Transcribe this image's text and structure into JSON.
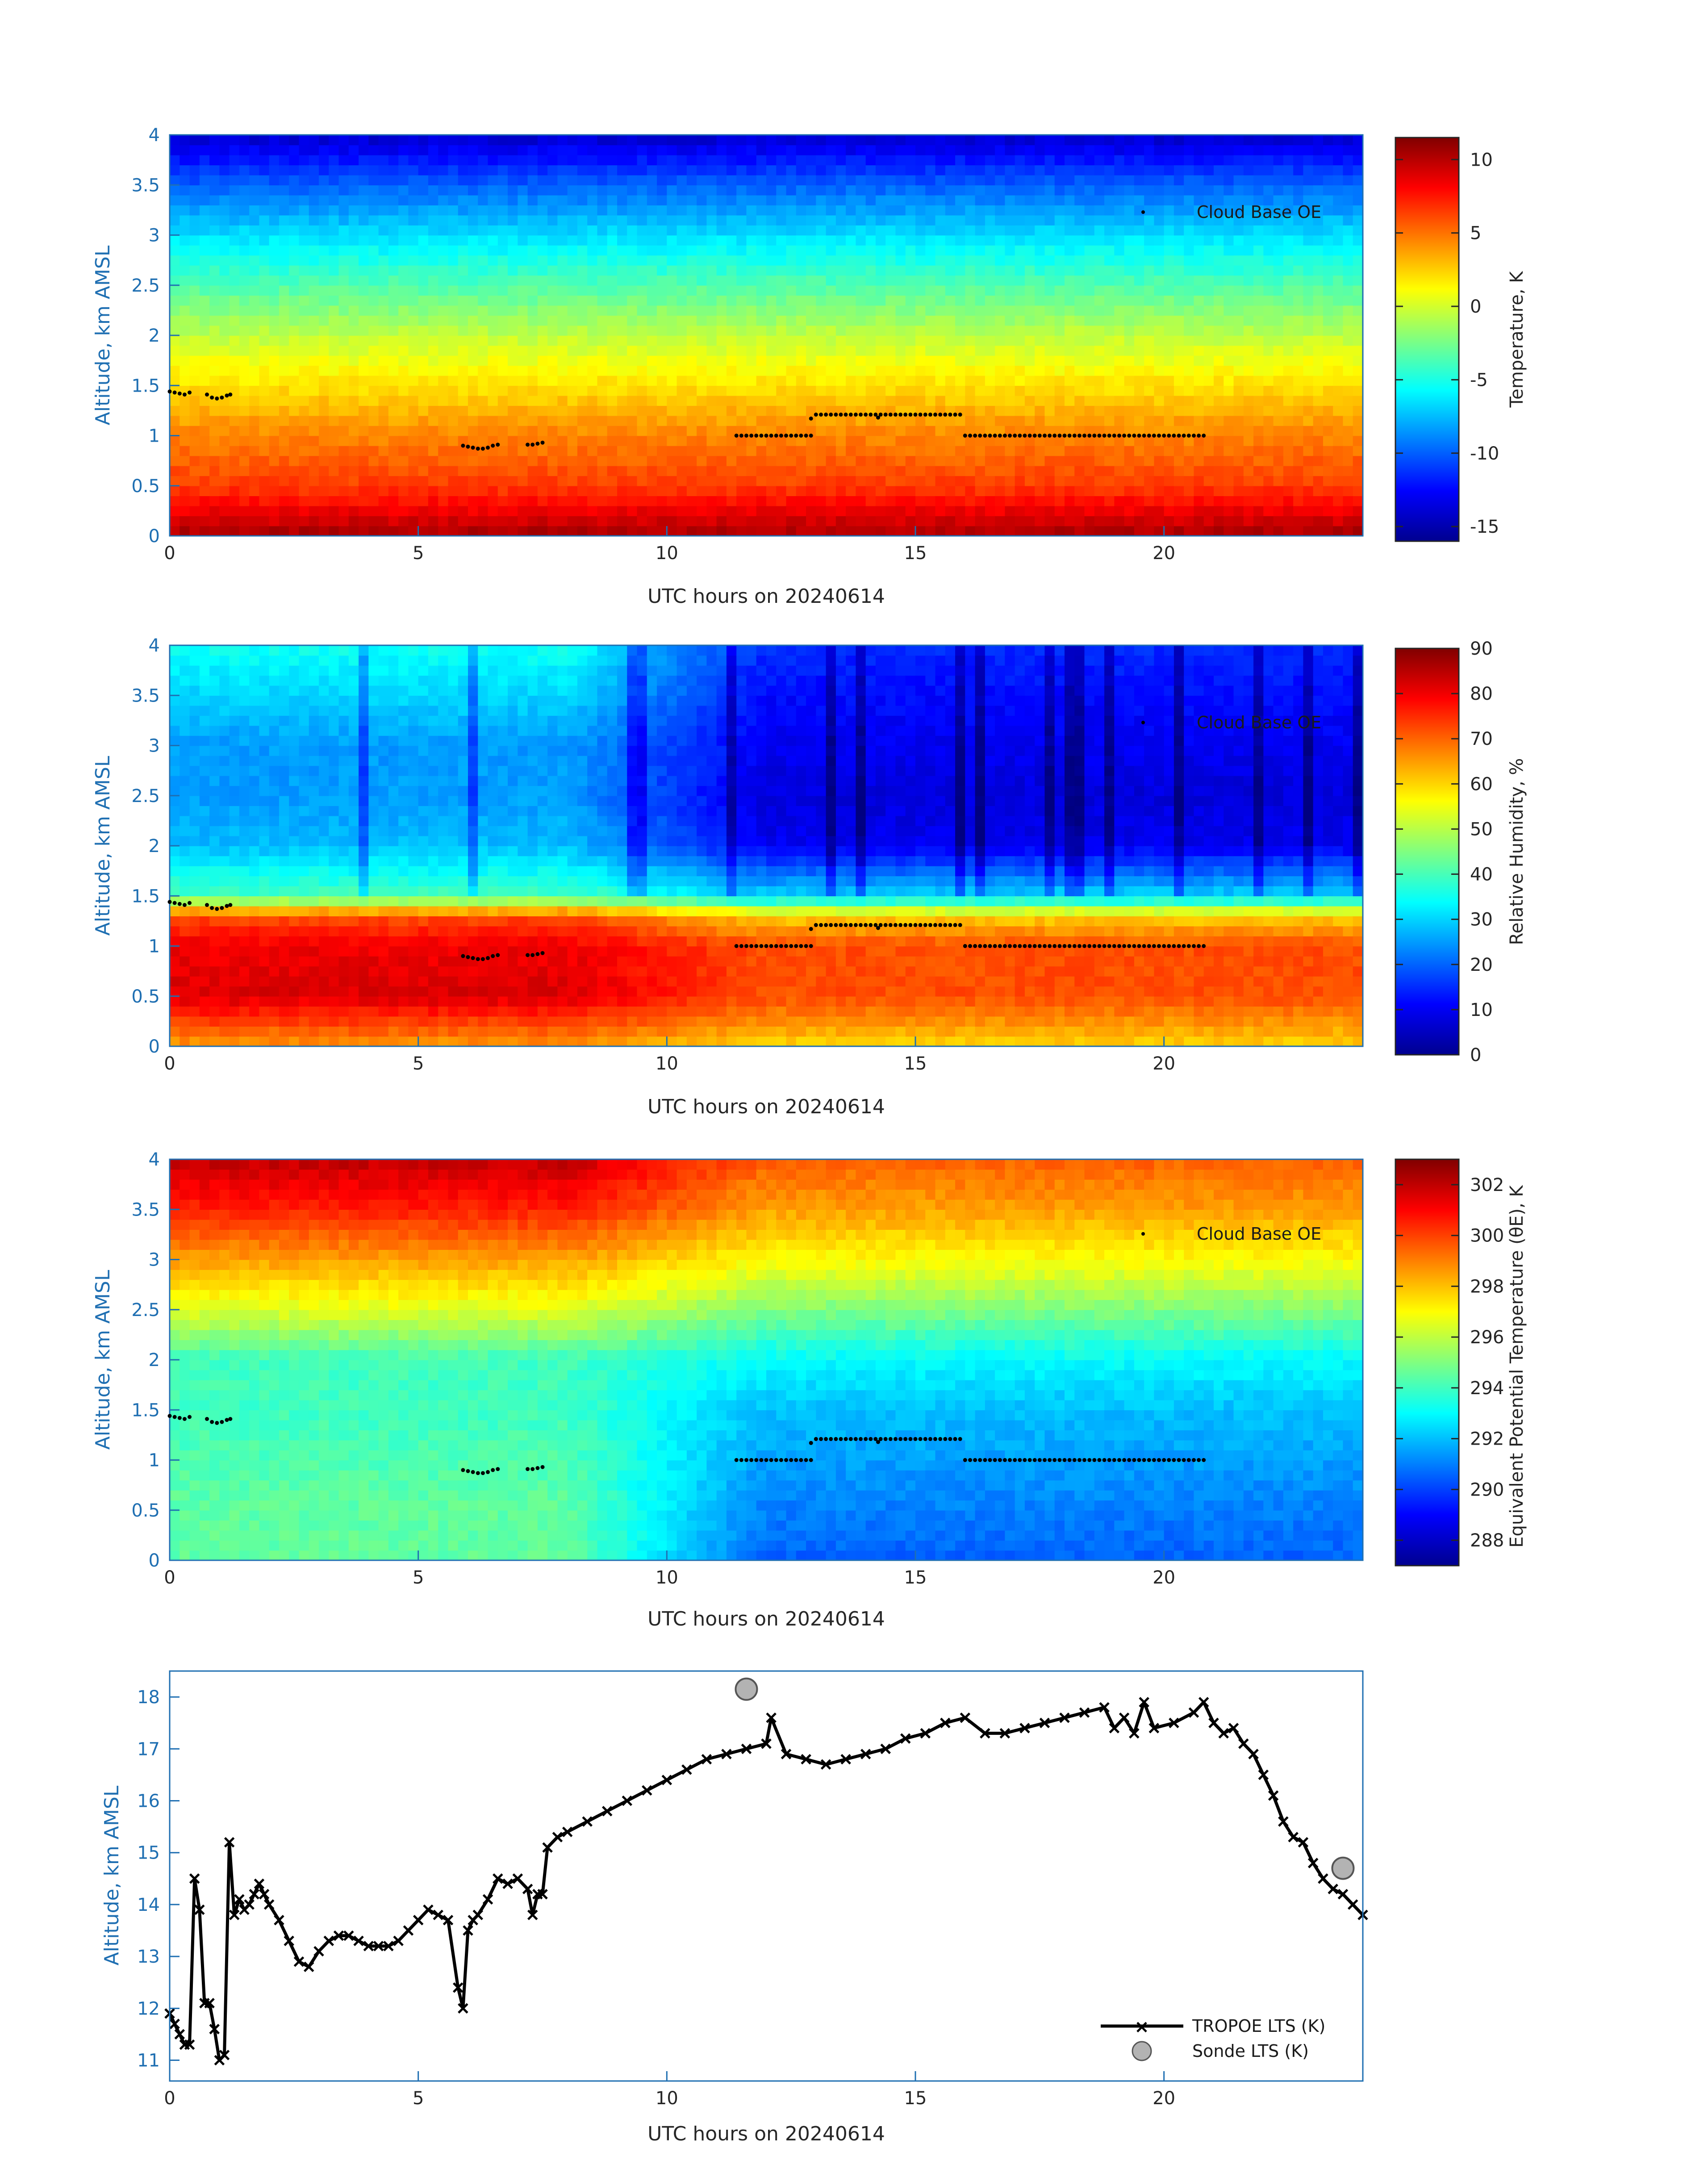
{
  "figure": {
    "xlabel": "UTC hours on 20240614",
    "x_ticks": [
      "0",
      "5",
      "10",
      "15",
      "20"
    ],
    "y_ticks_profile": [
      "0",
      "0.5",
      "1",
      "1.5",
      "2",
      "2.5",
      "3",
      "3.5",
      "4"
    ],
    "ylabel": "Altitude, km AMSL"
  },
  "cloud_base": {
    "legend": "Cloud Base OE",
    "segments": [
      [
        [
          0.0,
          1.44
        ],
        [
          0.1,
          1.43
        ],
        [
          0.2,
          1.42
        ],
        [
          0.3,
          1.41
        ],
        [
          0.4,
          1.43
        ]
      ],
      [
        [
          0.75,
          1.41
        ],
        [
          0.85,
          1.38
        ],
        [
          0.95,
          1.37
        ],
        [
          1.05,
          1.38
        ],
        [
          1.15,
          1.4
        ],
        [
          1.22,
          1.41
        ]
      ],
      [
        [
          5.9,
          0.9
        ],
        [
          6.0,
          0.89
        ],
        [
          6.1,
          0.88
        ],
        [
          6.2,
          0.87
        ],
        [
          6.3,
          0.87
        ],
        [
          6.4,
          0.88
        ],
        [
          6.5,
          0.9
        ],
        [
          6.6,
          0.91
        ]
      ],
      [
        [
          7.2,
          0.91
        ],
        [
          7.3,
          0.91
        ],
        [
          7.4,
          0.92
        ],
        [
          7.5,
          0.93
        ]
      ],
      [
        [
          11.4,
          1.0
        ],
        [
          12.9,
          1.0
        ]
      ],
      [
        [
          12.9,
          1.17
        ],
        [
          13.0,
          1.21
        ],
        [
          14.2,
          1.21
        ],
        [
          14.25,
          1.18
        ],
        [
          14.3,
          1.21
        ],
        [
          15.9,
          1.21
        ]
      ],
      [
        [
          16.0,
          1.0
        ],
        [
          20.8,
          1.0
        ]
      ]
    ]
  },
  "chart_data": [
    {
      "type": "heatmap",
      "title": "",
      "xlabel": "UTC hours on 20240614",
      "ylabel": "Altitude, km AMSL",
      "xlim": [
        0,
        24
      ],
      "ylim": [
        0,
        4
      ],
      "colorbar": {
        "label": "Temperature, K",
        "min": -16,
        "max": 11.5,
        "ticks": [
          "10",
          "5",
          "0",
          "-5",
          "-10",
          "-15"
        ],
        "tick_values": [
          10,
          5,
          0,
          -5,
          -10,
          -15
        ],
        "colormap": "jet"
      },
      "profile_heights_km": [
        0.0,
        0.5,
        1.0,
        1.5,
        2.0,
        2.5,
        3.0,
        3.5,
        4.0
      ],
      "profile_values": [
        10.5,
        6.5,
        4.5,
        2.0,
        -0.5,
        -3.5,
        -6.5,
        -10.0,
        -14.0
      ],
      "legend": "Cloud Base OE"
    },
    {
      "type": "heatmap",
      "title": "",
      "xlabel": "UTC hours on 20240614",
      "ylabel": "Altitude, km AMSL",
      "xlim": [
        0,
        24
      ],
      "ylim": [
        0,
        4
      ],
      "colorbar": {
        "label": "Relative Humidity, %",
        "min": 0,
        "max": 90,
        "ticks": [
          "90",
          "80",
          "70",
          "60",
          "50",
          "40",
          "30",
          "20",
          "10",
          "0"
        ],
        "tick_values": [
          90,
          80,
          70,
          60,
          50,
          40,
          30,
          20,
          10,
          0
        ],
        "colormap": "jet"
      },
      "profile_heights_km": [
        0.0,
        0.5,
        1.0,
        1.3,
        1.5,
        2.0,
        2.5,
        3.0,
        3.5,
        4.0
      ],
      "profile_values_early": [
        65,
        82,
        80,
        72,
        40,
        28,
        25,
        25,
        30,
        35
      ],
      "profile_values_late": [
        60,
        72,
        72,
        60,
        30,
        10,
        8,
        10,
        12,
        15
      ],
      "legend": "Cloud Base OE"
    },
    {
      "type": "heatmap",
      "title": "",
      "xlabel": "UTC hours on 20240614",
      "ylabel": "Altitude, km AMSL",
      "xlim": [
        0,
        24
      ],
      "ylim": [
        0,
        4
      ],
      "colorbar": {
        "label": "Equivalent Potential Temperature (θE), K",
        "min": 287,
        "max": 303,
        "ticks": [
          "302",
          "300",
          "298",
          "296",
          "294",
          "292",
          "290",
          "288"
        ],
        "tick_values": [
          302,
          300,
          298,
          296,
          294,
          292,
          290,
          288
        ],
        "colormap": "jet"
      },
      "profile_heights_km": [
        0.0,
        0.5,
        1.0,
        1.5,
        2.0,
        2.5,
        3.0,
        3.5,
        4.0
      ],
      "profile_values_early": [
        294.5,
        294.5,
        294.2,
        294.0,
        294.0,
        296.5,
        298.5,
        300.5,
        302.0
      ],
      "profile_values_late": [
        290.5,
        291.0,
        291.5,
        292.0,
        293.0,
        295.0,
        297.0,
        298.5,
        299.5
      ],
      "legend": "Cloud Base OE"
    },
    {
      "type": "line",
      "title": "",
      "xlabel": "UTC hours on 20240614",
      "ylabel": "Altitude, km AMSL",
      "xlim": [
        0,
        24
      ],
      "ylim": [
        10.6,
        18.5
      ],
      "y_ticks": [
        "11",
        "12",
        "13",
        "14",
        "15",
        "16",
        "17",
        "18"
      ],
      "series": [
        {
          "name": "TROPOE LTS (K)",
          "x": [
            0.0,
            0.1,
            0.2,
            0.3,
            0.4,
            0.5,
            0.6,
            0.7,
            0.8,
            0.9,
            1.0,
            1.1,
            1.2,
            1.3,
            1.4,
            1.5,
            1.6,
            1.7,
            1.8,
            1.9,
            2.0,
            2.2,
            2.4,
            2.6,
            2.8,
            3.0,
            3.2,
            3.4,
            3.6,
            3.8,
            4.0,
            4.2,
            4.4,
            4.6,
            4.8,
            5.0,
            5.2,
            5.4,
            5.6,
            5.8,
            5.9,
            6.0,
            6.1,
            6.2,
            6.4,
            6.6,
            6.8,
            7.0,
            7.2,
            7.3,
            7.4,
            7.5,
            7.6,
            7.8,
            8.0,
            8.4,
            8.8,
            9.2,
            9.6,
            10.0,
            10.4,
            10.8,
            11.2,
            11.6,
            12.0,
            12.1,
            12.4,
            12.8,
            13.2,
            13.6,
            14.0,
            14.4,
            14.8,
            15.2,
            15.6,
            16.0,
            16.4,
            16.8,
            17.2,
            17.6,
            18.0,
            18.4,
            18.8,
            19.0,
            19.2,
            19.4,
            19.6,
            19.8,
            20.2,
            20.6,
            20.8,
            21.0,
            21.2,
            21.4,
            21.6,
            21.8,
            22.0,
            22.2,
            22.4,
            22.6,
            22.8,
            23.0,
            23.2,
            23.4,
            23.6,
            23.8,
            24.0
          ],
          "values": [
            11.9,
            11.7,
            11.5,
            11.3,
            11.3,
            14.5,
            13.9,
            12.1,
            12.1,
            11.6,
            11.0,
            11.1,
            15.2,
            13.8,
            14.1,
            13.9,
            14.0,
            14.2,
            14.4,
            14.2,
            14.0,
            13.7,
            13.3,
            12.9,
            12.8,
            13.1,
            13.3,
            13.4,
            13.4,
            13.3,
            13.2,
            13.2,
            13.2,
            13.3,
            13.5,
            13.7,
            13.9,
            13.8,
            13.7,
            12.4,
            12.0,
            13.5,
            13.7,
            13.8,
            14.1,
            14.5,
            14.4,
            14.5,
            14.3,
            13.8,
            14.2,
            14.2,
            15.1,
            15.3,
            15.4,
            15.6,
            15.8,
            16.0,
            16.2,
            16.4,
            16.6,
            16.8,
            16.9,
            17.0,
            17.1,
            17.6,
            16.9,
            16.8,
            16.7,
            16.8,
            16.9,
            17.0,
            17.2,
            17.3,
            17.5,
            17.6,
            17.3,
            17.3,
            17.4,
            17.5,
            17.6,
            17.7,
            17.8,
            17.4,
            17.6,
            17.3,
            17.9,
            17.4,
            17.5,
            17.7,
            17.9,
            17.5,
            17.3,
            17.4,
            17.1,
            16.9,
            16.5,
            16.1,
            15.6,
            15.3,
            15.2,
            14.8,
            14.5,
            14.3,
            14.2,
            14.0,
            13.8
          ],
          "color": "#000000",
          "marker": "x"
        },
        {
          "name": "Sonde LTS (K)",
          "x": [
            11.6,
            23.6
          ],
          "values": [
            18.15,
            14.7
          ],
          "color": "#b3b3b3",
          "marker": "o"
        }
      ]
    }
  ]
}
